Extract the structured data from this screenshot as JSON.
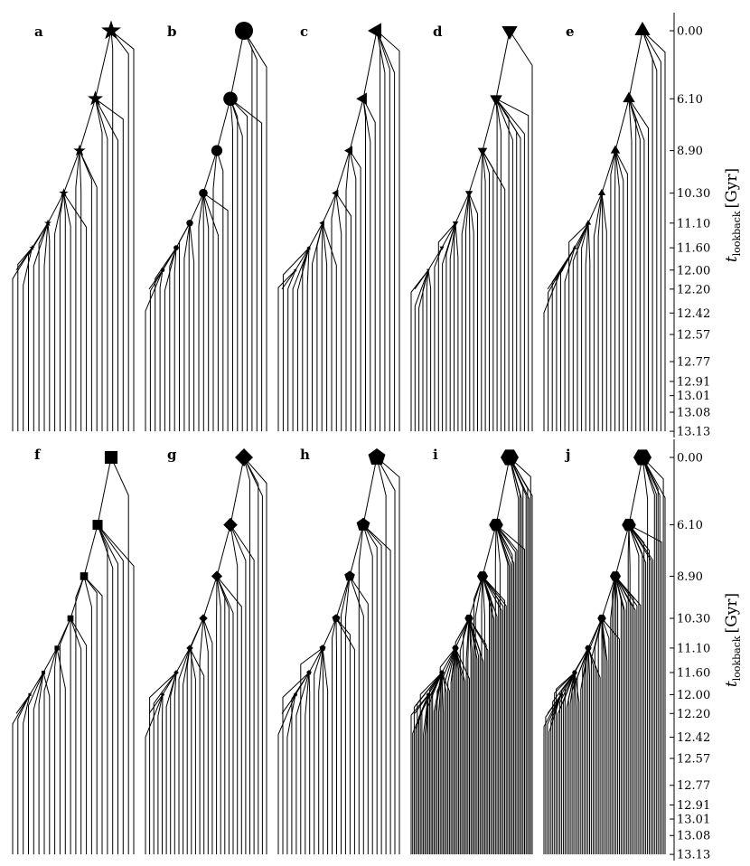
{
  "figure": {
    "panels": [
      {
        "label": "a",
        "marker": "star",
        "branches": 24,
        "levels": 6
      },
      {
        "label": "b",
        "marker": "circle",
        "branches": 26,
        "levels": 7
      },
      {
        "label": "c",
        "marker": "triangle-left",
        "branches": 26,
        "levels": 7
      },
      {
        "label": "d",
        "marker": "triangle-down",
        "branches": 32,
        "levels": 7
      },
      {
        "label": "e",
        "marker": "triangle-up",
        "branches": 30,
        "levels": 7
      },
      {
        "label": "f",
        "marker": "square",
        "branches": 24,
        "levels": 7
      },
      {
        "label": "g",
        "marker": "diamond",
        "branches": 30,
        "levels": 7
      },
      {
        "label": "h",
        "marker": "pentagon",
        "branches": 28,
        "levels": 7
      },
      {
        "label": "i",
        "marker": "hexagon",
        "branches": 80,
        "levels": 7
      },
      {
        "label": "j",
        "marker": "hexagon",
        "branches": 70,
        "levels": 7
      }
    ],
    "yaxis": {
      "label_main": "t",
      "label_sub": "lookback",
      "label_unit": "[Gyr]",
      "ticks": [
        "0.00",
        "6.10",
        "8.90",
        "10.30",
        "11.10",
        "11.60",
        "12.00",
        "12.20",
        "12.42",
        "12.57",
        "12.77",
        "12.91",
        "13.01",
        "13.08",
        "13.13"
      ]
    }
  }
}
